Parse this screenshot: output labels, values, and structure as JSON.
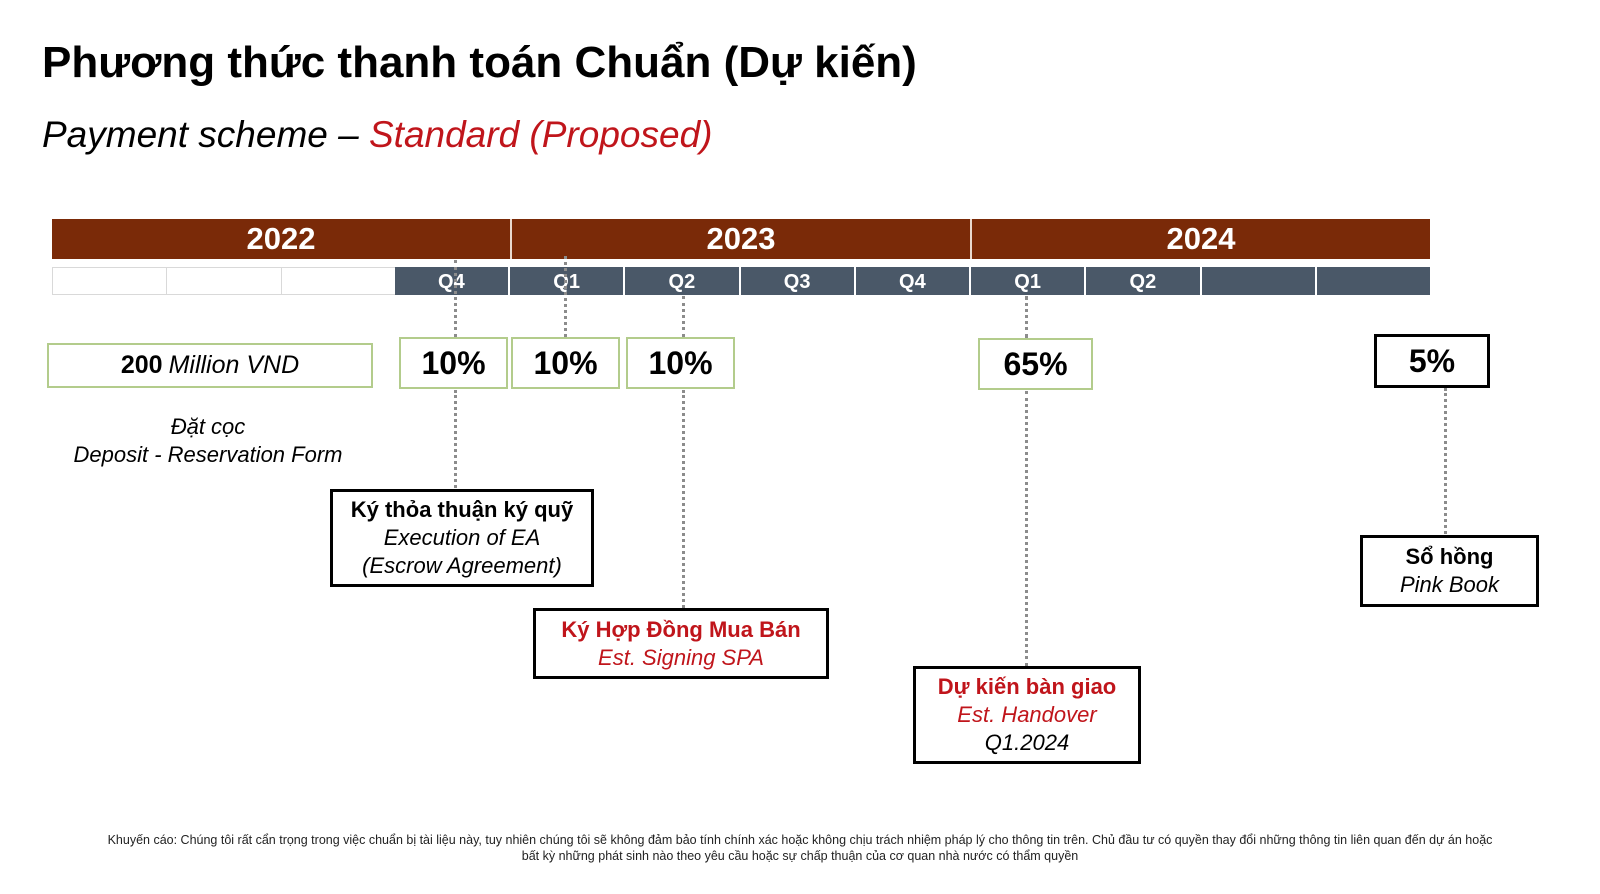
{
  "title": "Phương thức thanh toán Chuẩn (Dự kiến)",
  "subtitle": {
    "prefix": "Payment scheme – ",
    "accent": "Standard (Proposed)"
  },
  "timeline": {
    "years": [
      "2022",
      "2023",
      "2024"
    ],
    "quarters": [
      "",
      "",
      "",
      "Q4",
      "Q1",
      "Q2",
      "Q3",
      "Q4",
      "Q1",
      "Q2",
      "",
      ""
    ]
  },
  "payments": {
    "deposit_amount": "200",
    "deposit_unit": "Million VND",
    "p1": "10%",
    "p2": "10%",
    "p3": "10%",
    "p4": "65%",
    "p5": "5%"
  },
  "deposit_label": {
    "vn": "Đặt cọc",
    "en": "Deposit - Reservation Form"
  },
  "milestones": {
    "escrow": {
      "vn": "Ký thỏa thuận ký quỹ",
      "en1": "Execution of EA",
      "en2": "(Escrow Agreement)"
    },
    "spa": {
      "vn": "Ký Hợp Đồng Mua Bán",
      "en": "Est. Signing SPA"
    },
    "handover": {
      "vn": "Dự kiến bàn giao",
      "en": "Est. Handover",
      "date": "Q1.2024"
    },
    "pinkbook": {
      "vn": "Sổ hồng",
      "en": "Pink Book"
    }
  },
  "colors": {
    "year_bar": "#7a2a08",
    "quarter_bar": "#4a5868",
    "accent_red": "#c0151b",
    "box_border_green": "#b3cc8c"
  },
  "disclaimer": {
    "line1": "Khuyến cáo: Chúng tôi rất cẩn trọng trong việc chuẩn bị tài liệu này, tuy nhiên chúng tôi sẽ không đảm bảo tính chính xác hoặc không chịu trách nhiệm pháp lý cho thông tin trên. Chủ đầu tư có quyền thay đổi những thông tin liên quan đến dự án hoặc",
    "line2": "bất kỳ những phát sinh nào theo yêu cầu hoặc sự chấp thuận của cơ quan nhà nước có thẩm quyền"
  }
}
